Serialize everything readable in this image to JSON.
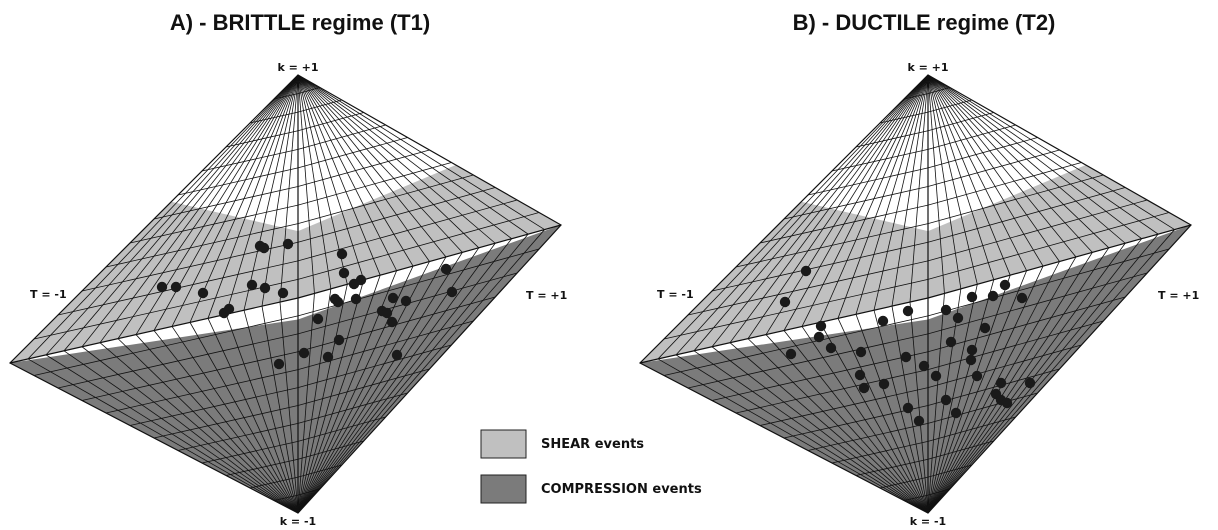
{
  "panels": [
    {
      "title": "A) - BRITTLE regime (T1)",
      "k_top": "k = +1",
      "k_bottom": "k = -1",
      "t_left": "T = -1",
      "t_right": "T = +1",
      "points": [
        [
          260,
          246
        ],
        [
          264,
          248
        ],
        [
          288,
          244
        ],
        [
          342,
          254
        ],
        [
          446,
          269
        ],
        [
          344,
          273
        ],
        [
          361,
          280
        ],
        [
          162,
          287
        ],
        [
          176,
          287
        ],
        [
          203,
          293
        ],
        [
          252,
          285
        ],
        [
          265,
          288
        ],
        [
          283,
          293
        ],
        [
          354,
          284
        ],
        [
          452,
          292
        ],
        [
          335,
          299
        ],
        [
          338,
          302
        ],
        [
          356,
          299
        ],
        [
          393,
          298
        ],
        [
          406,
          301
        ],
        [
          224,
          313
        ],
        [
          229,
          309
        ],
        [
          318,
          319
        ],
        [
          382,
          311
        ],
        [
          387,
          313
        ],
        [
          392,
          322
        ],
        [
          339,
          340
        ],
        [
          304,
          353
        ],
        [
          328,
          357
        ],
        [
          397,
          355
        ],
        [
          279,
          364
        ]
      ]
    },
    {
      "title": "B) - DUCTILE regime (T2)",
      "k_top": "k = +1",
      "k_bottom": "k = -1",
      "t_left": "T = -1",
      "t_right": "T = +1",
      "points": [
        [
          806,
          271
        ],
        [
          785,
          302
        ],
        [
          1005,
          285
        ],
        [
          1022,
          298
        ],
        [
          972,
          297
        ],
        [
          993,
          296
        ],
        [
          908,
          311
        ],
        [
          946,
          310
        ],
        [
          958,
          318
        ],
        [
          883,
          321
        ],
        [
          985,
          328
        ],
        [
          821,
          326
        ],
        [
          819,
          337
        ],
        [
          831,
          348
        ],
        [
          861,
          352
        ],
        [
          951,
          342
        ],
        [
          972,
          350
        ],
        [
          791,
          354
        ],
        [
          906,
          357
        ],
        [
          924,
          366
        ],
        [
          971,
          360
        ],
        [
          860,
          375
        ],
        [
          884,
          384
        ],
        [
          864,
          388
        ],
        [
          936,
          376
        ],
        [
          977,
          376
        ],
        [
          1001,
          383
        ],
        [
          1030,
          383
        ],
        [
          996,
          394
        ],
        [
          1001,
          400
        ],
        [
          1007,
          403
        ],
        [
          946,
          400
        ],
        [
          908,
          408
        ],
        [
          956,
          413
        ],
        [
          919,
          421
        ]
      ]
    }
  ],
  "legend": {
    "shear_label": "SHEAR events",
    "compression_label": "COMPRESSION events",
    "shear_color": "#c0c0c0",
    "compression_color": "#7b7b7b"
  }
}
